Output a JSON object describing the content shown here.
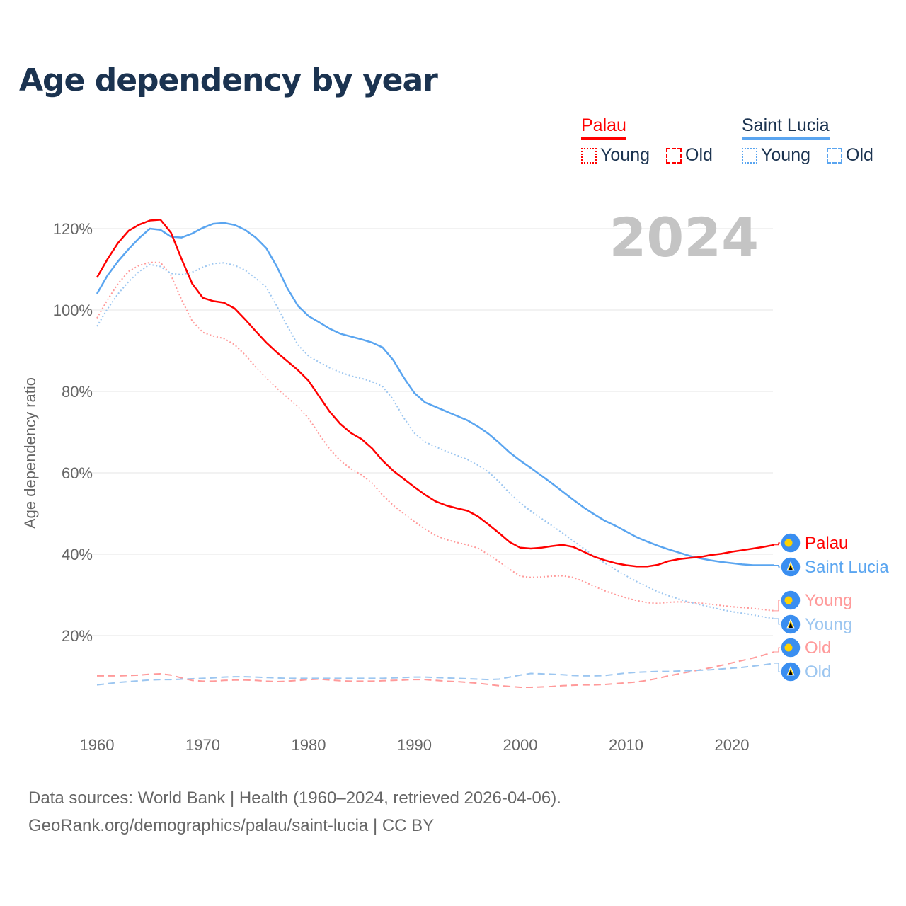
{
  "title": "Age dependency by year",
  "legend": {
    "groups": [
      {
        "name": "Palau",
        "color": "#ff0000",
        "items": [
          "Young",
          "Old"
        ]
      },
      {
        "name": "Saint Lucia",
        "color": "#5aa5f0",
        "items": [
          "Young",
          "Old"
        ]
      }
    ]
  },
  "source": {
    "line1": "Data sources: World Bank | Health (1960–2024, retrieved 2026-04-06).",
    "line2": "GeoRank.org/demographics/palau/saint-lucia | CC BY"
  },
  "chart_data": {
    "type": "line",
    "title": "Age dependency by year",
    "ylabel": "Age dependency ratio",
    "xlabel": "",
    "year_label": "2024",
    "xlim": [
      1960,
      2024
    ],
    "ylim": [
      0,
      125
    ],
    "x_ticks": [
      "1960",
      "1970",
      "1980",
      "1990",
      "2000",
      "2010",
      "2020"
    ],
    "y_ticks": [
      "20%",
      "40%",
      "60%",
      "80%",
      "100%",
      "120%"
    ],
    "x_start": 1960,
    "series": [
      {
        "name": "Palau",
        "label": "Palau",
        "country": "Palau",
        "style": "solid",
        "color": "#ff0000",
        "values": [
          108,
          112.5,
          116.5,
          119.5,
          121,
          122,
          122.2,
          119,
          112.5,
          106.5,
          103,
          102.2,
          101.8,
          100.4,
          97.7,
          94.8,
          92,
          89.6,
          87.4,
          85.2,
          82.6,
          78.8,
          75,
          72,
          69.8,
          68.3,
          66,
          63,
          60.5,
          58.5,
          56.5,
          54.6,
          53,
          52,
          51.3,
          50.7,
          49.3,
          47.3,
          45.2,
          43,
          41.6,
          41.4,
          41.6,
          42,
          42.3,
          41.8,
          40.6,
          39.4,
          38.5,
          37.8,
          37.3,
          37,
          37,
          37.4,
          38.3,
          38.8,
          39.1,
          39.3,
          39.8,
          40.1,
          40.6,
          41,
          41.4,
          41.8,
          42.3
        ]
      },
      {
        "name": "Saint Lucia",
        "label": "Saint Lucia",
        "country": "Saint Lucia",
        "style": "solid",
        "color": "#5aa5f0",
        "values": [
          104,
          108.5,
          112,
          115,
          117.7,
          120,
          119.7,
          118,
          117.8,
          118.8,
          120.2,
          121.2,
          121.4,
          120.9,
          119.7,
          117.8,
          115.2,
          110.7,
          105.3,
          101,
          98.5,
          97,
          95.4,
          94.2,
          93.5,
          92.8,
          92,
          90.8,
          87.7,
          83.4,
          79.6,
          77.3,
          76.2,
          75.1,
          74,
          72.9,
          71.4,
          69.6,
          67.4,
          65,
          63,
          61.2,
          59.3,
          57.4,
          55.4,
          53.4,
          51.5,
          49.8,
          48.2,
          47,
          45.6,
          44.2,
          43.1,
          42.1,
          41.2,
          40.4,
          39.6,
          39,
          38.5,
          38.1,
          37.8,
          37.5,
          37.3,
          37.3,
          37.3
        ]
      },
      {
        "name": "Palau Young",
        "label": "Young",
        "country": "Palau",
        "style": "dotted",
        "color": "#ff9a9a",
        "values": [
          98,
          102.5,
          106.5,
          109.5,
          111,
          111.7,
          111.7,
          108.5,
          102.5,
          97.3,
          94.5,
          93.6,
          93,
          91.5,
          89,
          86,
          83.3,
          80.8,
          78.5,
          76.2,
          73.4,
          69.5,
          65.8,
          63,
          61,
          59.5,
          57.5,
          54.5,
          52,
          50,
          48,
          46.2,
          44.6,
          43.6,
          42.9,
          42.3,
          41.5,
          39.9,
          38.2,
          36.3,
          34.6,
          34.3,
          34.4,
          34.6,
          34.7,
          34.3,
          33.3,
          32.1,
          31,
          30.1,
          29.3,
          28.6,
          28.1,
          27.9,
          28.2,
          28.3,
          28.2,
          28,
          27.7,
          27.4,
          27.1,
          26.9,
          26.7,
          26.4,
          26.1
        ]
      },
      {
        "name": "Saint Lucia Young",
        "label": "Young",
        "country": "Saint Lucia",
        "style": "dotted",
        "color": "#9cc6f0",
        "values": [
          96,
          100.3,
          104,
          107,
          109.5,
          111.2,
          110.7,
          109,
          108.7,
          109.3,
          110.5,
          111.4,
          111.6,
          111,
          109.8,
          107.8,
          105.6,
          101,
          96,
          91.4,
          88.7,
          87.2,
          85.8,
          84.7,
          83.8,
          83.2,
          82.4,
          81.2,
          78,
          73.5,
          69.8,
          67.6,
          66.4,
          65.3,
          64.3,
          63.3,
          61.9,
          60.2,
          57.8,
          55,
          52.6,
          50.6,
          48.8,
          47,
          45.2,
          43.3,
          41.4,
          39.5,
          37.8,
          36.2,
          34.7,
          33.3,
          32,
          30.8,
          29.8,
          29,
          28.2,
          27.6,
          27,
          26.4,
          25.9,
          25.5,
          25.1,
          24.6,
          24.2
        ]
      },
      {
        "name": "Palau Old",
        "label": "Old",
        "country": "Palau",
        "style": "dashed",
        "color": "#ff9a9a",
        "values": [
          10.1,
          10.1,
          10.1,
          10.2,
          10.3,
          10.5,
          10.6,
          10.3,
          9.6,
          9.0,
          8.8,
          8.8,
          9.0,
          9.1,
          9.1,
          9.0,
          8.8,
          8.7,
          8.8,
          9.0,
          9.2,
          9.3,
          9.1,
          8.9,
          8.8,
          8.8,
          8.8,
          8.9,
          9.0,
          9.1,
          9.2,
          9.2,
          9.0,
          8.8,
          8.7,
          8.5,
          8.3,
          8.0,
          7.7,
          7.5,
          7.3,
          7.3,
          7.4,
          7.5,
          7.7,
          7.8,
          7.9,
          7.9,
          8.0,
          8.2,
          8.4,
          8.6,
          9.0,
          9.5,
          10.1,
          10.6,
          11.1,
          11.6,
          12.1,
          12.7,
          13.3,
          13.9,
          14.5,
          15.2,
          16.0
        ]
      },
      {
        "name": "Saint Lucia Old",
        "label": "Old",
        "country": "Saint Lucia",
        "style": "dashed",
        "color": "#9cc6f0",
        "values": [
          7.9,
          8.2,
          8.5,
          8.7,
          8.9,
          9.1,
          9.2,
          9.2,
          9.3,
          9.4,
          9.5,
          9.6,
          9.8,
          9.9,
          9.9,
          9.8,
          9.7,
          9.6,
          9.5,
          9.5,
          9.5,
          9.5,
          9.5,
          9.5,
          9.5,
          9.5,
          9.5,
          9.5,
          9.6,
          9.7,
          9.8,
          9.8,
          9.7,
          9.6,
          9.5,
          9.4,
          9.3,
          9.2,
          9.3,
          9.8,
          10.3,
          10.7,
          10.6,
          10.5,
          10.4,
          10.2,
          10.1,
          10.1,
          10.2,
          10.5,
          10.8,
          11.0,
          11.1,
          11.2,
          11.2,
          11.3,
          11.4,
          11.5,
          11.6,
          11.8,
          12.0,
          12.2,
          12.5,
          12.8,
          13.2
        ]
      }
    ]
  }
}
